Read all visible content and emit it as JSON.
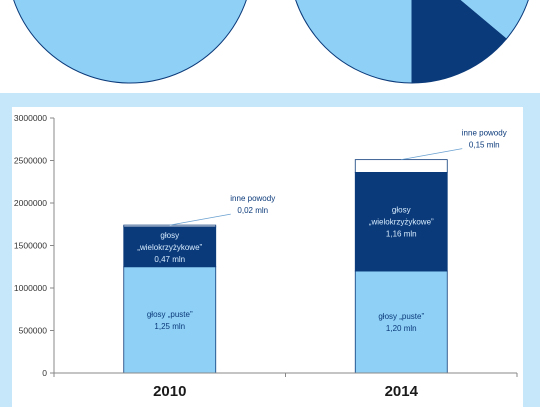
{
  "colors": {
    "pie_light": "#8fd0f6",
    "pie_dark": "#0b3a7a",
    "bar_light": "#8fd0f6",
    "bar_dark": "#0b3a7a",
    "bar_other": "#ffffff",
    "outline": "#0b3a7a",
    "panel_bg": "#c6e7f9",
    "axis_text": "#333333",
    "label_text": "#0b3a7a"
  },
  "pies": [
    {
      "slices": [
        {
          "name": "glosy puste",
          "color": "light"
        }
      ]
    },
    {
      "slices": [
        {
          "name": "glosy wielokrzyzykowe",
          "color": "dark"
        },
        {
          "name": "glosy puste",
          "color": "light"
        }
      ]
    }
  ],
  "chart_data": {
    "type": "bar",
    "stacked": true,
    "categories": [
      "2010",
      "2014"
    ],
    "series": [
      {
        "key": "puste",
        "values": [
          1250000,
          1200000
        ],
        "color": "light"
      },
      {
        "key": "wielo",
        "values": [
          470000,
          1160000
        ],
        "color": "dark"
      },
      {
        "key": "inne",
        "values": [
          20000,
          150000
        ],
        "color": "white"
      }
    ],
    "ylim": [
      0,
      3000000
    ],
    "yticks": [
      "0",
      "500000",
      "1000000",
      "1500000",
      "2000000",
      "2500000",
      "3000000"
    ],
    "grid": false,
    "labels": {
      "puste": [
        {
          "line1": "głosy „puste”",
          "line2": "1,25 mln"
        },
        {
          "line1": "głosy „puste”",
          "line2": "1,20 mln"
        }
      ],
      "wielo": [
        {
          "line1": "głosy",
          "line2": "„wielokrzyżykowe”",
          "line3": "0,47 mln"
        },
        {
          "line1": "głosy",
          "line2": "„wielokrzyżykowe”",
          "line3": "1,16 mln"
        }
      ],
      "inne": [
        {
          "line1": "inne powody",
          "line2": "0,02 mln"
        },
        {
          "line1": "inne powody",
          "line2": "0,15 mln"
        }
      ]
    }
  }
}
